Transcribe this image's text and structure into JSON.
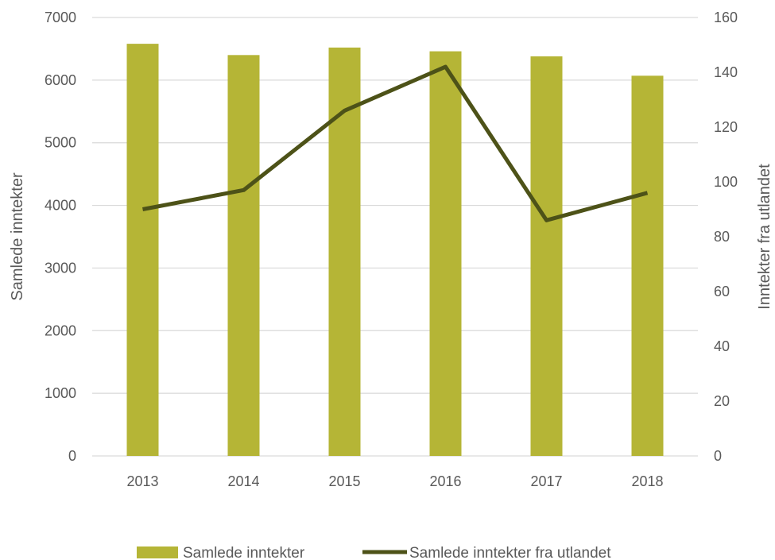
{
  "chart_data": {
    "type": "bar",
    "categories": [
      "2013",
      "2014",
      "2015",
      "2016",
      "2017",
      "2018"
    ],
    "series": [
      {
        "name": "Samlede inntekter",
        "type": "bar",
        "axis": "left",
        "values": [
          6580,
          6400,
          6520,
          6460,
          6380,
          6070
        ],
        "color": "#b5b536"
      },
      {
        "name": "Samlede inntekter fra utlandet",
        "type": "line",
        "axis": "right",
        "values": [
          90,
          97,
          126,
          142,
          86,
          96
        ],
        "color": "#4d5218"
      }
    ],
    "y_left": {
      "label": "Samlede inntekter",
      "ylim": [
        0,
        7000
      ],
      "ticks": [
        "0",
        "1000",
        "2000",
        "3000",
        "4000",
        "5000",
        "6000",
        "7000"
      ]
    },
    "y_right": {
      "label": "Inntekter fra utlandet",
      "ylim": [
        0,
        160
      ],
      "ticks": [
        "0",
        "20",
        "40",
        "60",
        "80",
        "100",
        "120",
        "140",
        "160"
      ]
    },
    "grid": true,
    "legend": "bottom",
    "colors": {
      "grid": "#d9d9d9",
      "text": "#595959"
    }
  }
}
